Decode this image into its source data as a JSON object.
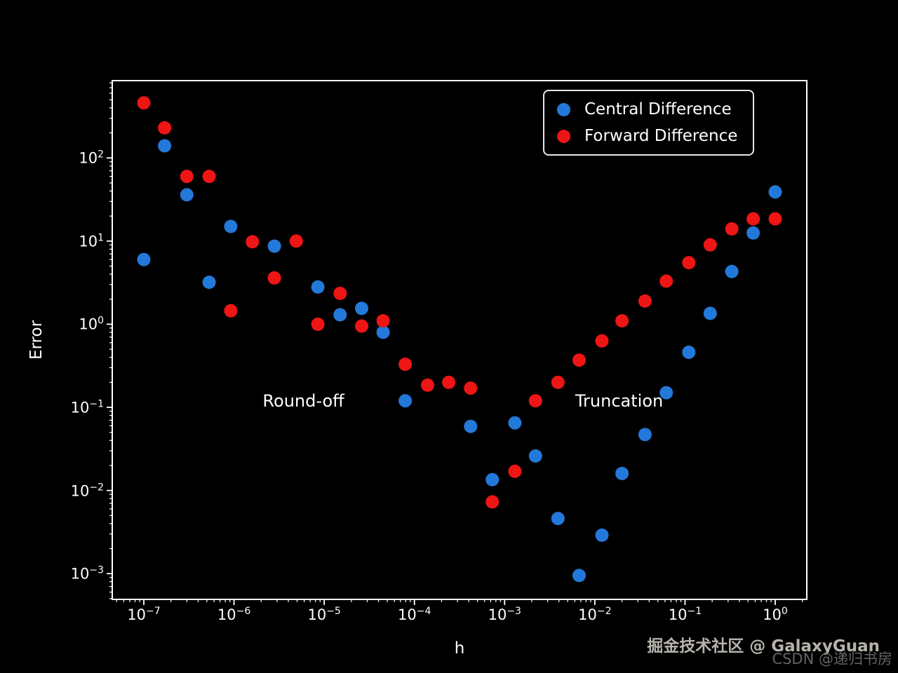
{
  "chart_data": {
    "type": "scatter",
    "title": "",
    "xlabel": "h",
    "ylabel": "Error",
    "x_scale": "log",
    "y_scale": "log",
    "xlim_log": [
      -7.35,
      0.35
    ],
    "ylim_log": [
      -3.31,
      2.93
    ],
    "x_tick_exponents": [
      -7,
      -6,
      -5,
      -4,
      -3,
      -2,
      -1,
      0
    ],
    "y_tick_exponents": [
      2,
      1,
      0,
      -1,
      -2,
      -3
    ],
    "grid": false,
    "legend_position": "upper right",
    "background": "#000000",
    "axis_color": "#ffffff",
    "series": [
      {
        "name": "Central Difference",
        "color": "#2379d9",
        "points": [
          [
            1e-07,
            6.0
          ],
          [
            1.7e-07,
            140
          ],
          [
            3e-07,
            36
          ],
          [
            5.3e-07,
            3.2
          ],
          [
            9.2e-07,
            15
          ],
          [
            2.8e-06,
            8.7
          ],
          [
            8.5e-06,
            2.8
          ],
          [
            1.5e-05,
            1.3
          ],
          [
            2.6e-05,
            1.55
          ],
          [
            4.5e-05,
            0.8
          ],
          [
            7.9e-05,
            0.12
          ],
          [
            0.00042,
            0.059
          ],
          [
            0.00073,
            0.0135
          ],
          [
            0.0013,
            0.065
          ],
          [
            0.0022,
            0.026
          ],
          [
            0.0039,
            0.0046
          ],
          [
            0.0067,
            0.00095
          ],
          [
            0.012,
            0.0029
          ],
          [
            0.02,
            0.016
          ],
          [
            0.036,
            0.047
          ],
          [
            0.062,
            0.15
          ],
          [
            0.11,
            0.46
          ],
          [
            0.19,
            1.35
          ],
          [
            0.33,
            4.3
          ],
          [
            0.57,
            12.5
          ],
          [
            1.0,
            39
          ]
        ]
      },
      {
        "name": "Forward Difference",
        "color": "#ee1515",
        "points": [
          [
            1e-07,
            460
          ],
          [
            1.7e-07,
            230
          ],
          [
            3e-07,
            60
          ],
          [
            5.3e-07,
            60
          ],
          [
            9.2e-07,
            1.45
          ],
          [
            1.6e-06,
            9.8
          ],
          [
            2.8e-06,
            3.6
          ],
          [
            4.9e-06,
            10
          ],
          [
            8.5e-06,
            1.0
          ],
          [
            1.5e-05,
            2.35
          ],
          [
            2.6e-05,
            0.95
          ],
          [
            4.5e-05,
            1.1
          ],
          [
            7.9e-05,
            0.33
          ],
          [
            0.00014,
            0.185
          ],
          [
            0.00024,
            0.2
          ],
          [
            0.00042,
            0.17
          ],
          [
            0.00073,
            0.0073
          ],
          [
            0.0013,
            0.017
          ],
          [
            0.0022,
            0.12
          ],
          [
            0.0039,
            0.2
          ],
          [
            0.0067,
            0.37
          ],
          [
            0.012,
            0.63
          ],
          [
            0.02,
            1.1
          ],
          [
            0.036,
            1.9
          ],
          [
            0.062,
            3.3
          ],
          [
            0.11,
            5.5
          ],
          [
            0.19,
            9.0
          ],
          [
            0.33,
            14
          ],
          [
            0.57,
            18.5
          ],
          [
            1.0,
            18.5
          ]
        ]
      }
    ],
    "annotations": [
      {
        "text": "Round-off",
        "log_x": -5.23,
        "log_y": -0.92
      },
      {
        "text": "Truncation",
        "log_x": -1.73,
        "log_y": -0.92
      }
    ]
  },
  "watermarks": [
    {
      "text": "掘金技术社区 @ GalaxyGuan"
    },
    {
      "text": "CSDN @递归书房"
    }
  ]
}
